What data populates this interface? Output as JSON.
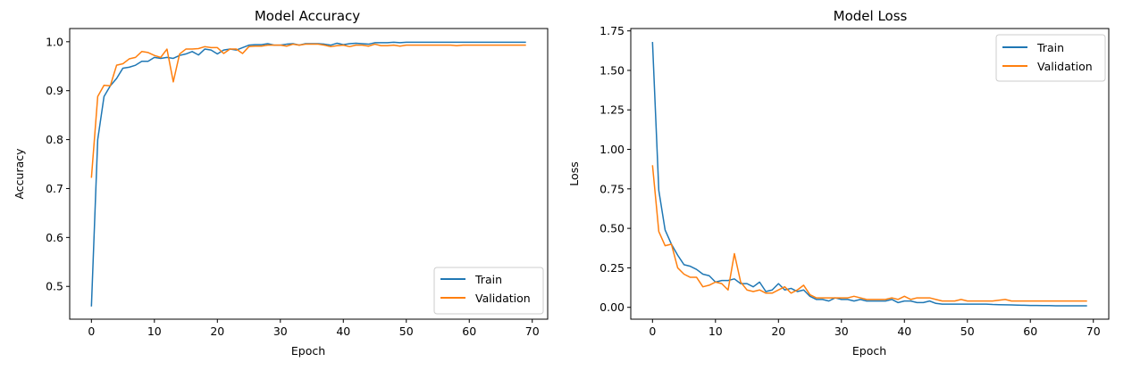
{
  "chart_data": [
    {
      "type": "line",
      "title": "Model Accuracy",
      "xlabel": "Epoch",
      "ylabel": "Accuracy",
      "xlim": [
        -3.45,
        72.45
      ],
      "ylim": [
        0.433,
        1.027
      ],
      "xticks": [
        0,
        10,
        20,
        30,
        40,
        50,
        60,
        70
      ],
      "xtick_labels": [
        "0",
        "10",
        "20",
        "30",
        "40",
        "50",
        "60",
        "70"
      ],
      "yticks": [
        0.5,
        0.6,
        0.7,
        0.8,
        0.9,
        1.0
      ],
      "ytick_labels": [
        "0.5",
        "0.6",
        "0.7",
        "0.8",
        "0.9",
        "1.0"
      ],
      "grid": false,
      "legend_position": "lower right",
      "series": [
        {
          "name": "Train",
          "color": "#1f77b4",
          "values": [
            0.459,
            0.8,
            0.888,
            0.91,
            0.925,
            0.946,
            0.948,
            0.952,
            0.96,
            0.96,
            0.968,
            0.966,
            0.968,
            0.966,
            0.972,
            0.975,
            0.98,
            0.973,
            0.985,
            0.983,
            0.975,
            0.983,
            0.985,
            0.983,
            0.988,
            0.993,
            0.994,
            0.994,
            0.996,
            0.993,
            0.993,
            0.995,
            0.996,
            0.993,
            0.996,
            0.996,
            0.996,
            0.995,
            0.993,
            0.997,
            0.994,
            0.996,
            0.997,
            0.996,
            0.995,
            0.998,
            0.998,
            0.998,
            0.999,
            0.998,
            0.999,
            0.999,
            0.999,
            0.999,
            0.999,
            0.999,
            0.999,
            0.999,
            0.999,
            0.999,
            0.999,
            0.999,
            0.999,
            0.999,
            0.999,
            0.999,
            0.999,
            0.999,
            0.999,
            0.999
          ]
        },
        {
          "name": "Validation",
          "color": "#ff7f0e",
          "values": [
            0.722,
            0.888,
            0.911,
            0.91,
            0.952,
            0.955,
            0.965,
            0.968,
            0.98,
            0.978,
            0.972,
            0.968,
            0.985,
            0.918,
            0.975,
            0.985,
            0.985,
            0.986,
            0.99,
            0.988,
            0.988,
            0.976,
            0.985,
            0.985,
            0.976,
            0.99,
            0.991,
            0.991,
            0.993,
            0.993,
            0.993,
            0.991,
            0.995,
            0.993,
            0.995,
            0.995,
            0.995,
            0.993,
            0.99,
            0.992,
            0.993,
            0.99,
            0.993,
            0.993,
            0.991,
            0.995,
            0.992,
            0.992,
            0.993,
            0.991,
            0.993,
            0.993,
            0.993,
            0.993,
            0.993,
            0.993,
            0.993,
            0.993,
            0.992,
            0.993,
            0.993,
            0.993,
            0.993,
            0.993,
            0.993,
            0.993,
            0.993,
            0.993,
            0.993,
            0.993
          ]
        }
      ]
    },
    {
      "type": "line",
      "title": "Model Loss",
      "xlabel": "Epoch",
      "ylabel": "Loss",
      "xlim": [
        -3.45,
        72.45
      ],
      "ylim": [
        -0.075,
        1.765
      ],
      "xticks": [
        0,
        10,
        20,
        30,
        40,
        50,
        60,
        70
      ],
      "xtick_labels": [
        "0",
        "10",
        "20",
        "30",
        "40",
        "50",
        "60",
        "70"
      ],
      "yticks": [
        0.0,
        0.25,
        0.5,
        0.75,
        1.0,
        1.25,
        1.5,
        1.75
      ],
      "ytick_labels": [
        "0.00",
        "0.25",
        "0.50",
        "0.75",
        "1.00",
        "1.25",
        "1.50",
        "1.75"
      ],
      "grid": false,
      "legend_position": "upper right",
      "series": [
        {
          "name": "Train",
          "color": "#1f77b4",
          "values": [
            1.68,
            0.74,
            0.49,
            0.4,
            0.33,
            0.27,
            0.26,
            0.24,
            0.21,
            0.2,
            0.16,
            0.17,
            0.17,
            0.18,
            0.15,
            0.15,
            0.13,
            0.16,
            0.1,
            0.11,
            0.15,
            0.11,
            0.12,
            0.1,
            0.11,
            0.07,
            0.05,
            0.05,
            0.04,
            0.06,
            0.05,
            0.05,
            0.04,
            0.05,
            0.04,
            0.04,
            0.04,
            0.04,
            0.05,
            0.03,
            0.04,
            0.04,
            0.03,
            0.03,
            0.04,
            0.025,
            0.02,
            0.02,
            0.02,
            0.02,
            0.02,
            0.02,
            0.02,
            0.02,
            0.018,
            0.017,
            0.016,
            0.015,
            0.014,
            0.013,
            0.012,
            0.012,
            0.011,
            0.011,
            0.01,
            0.01,
            0.01,
            0.01,
            0.01,
            0.01
          ]
        },
        {
          "name": "Validation",
          "color": "#ff7f0e",
          "values": [
            0.9,
            0.48,
            0.39,
            0.4,
            0.25,
            0.21,
            0.19,
            0.19,
            0.13,
            0.14,
            0.16,
            0.15,
            0.11,
            0.34,
            0.16,
            0.11,
            0.1,
            0.11,
            0.09,
            0.09,
            0.11,
            0.13,
            0.09,
            0.11,
            0.14,
            0.08,
            0.06,
            0.06,
            0.06,
            0.06,
            0.06,
            0.06,
            0.07,
            0.06,
            0.05,
            0.05,
            0.05,
            0.05,
            0.06,
            0.05,
            0.07,
            0.05,
            0.06,
            0.06,
            0.06,
            0.05,
            0.04,
            0.04,
            0.04,
            0.05,
            0.04,
            0.04,
            0.04,
            0.04,
            0.04,
            0.045,
            0.05,
            0.04,
            0.04,
            0.04,
            0.04,
            0.04,
            0.04,
            0.04,
            0.04,
            0.04,
            0.04,
            0.04,
            0.04,
            0.04
          ]
        }
      ]
    }
  ]
}
